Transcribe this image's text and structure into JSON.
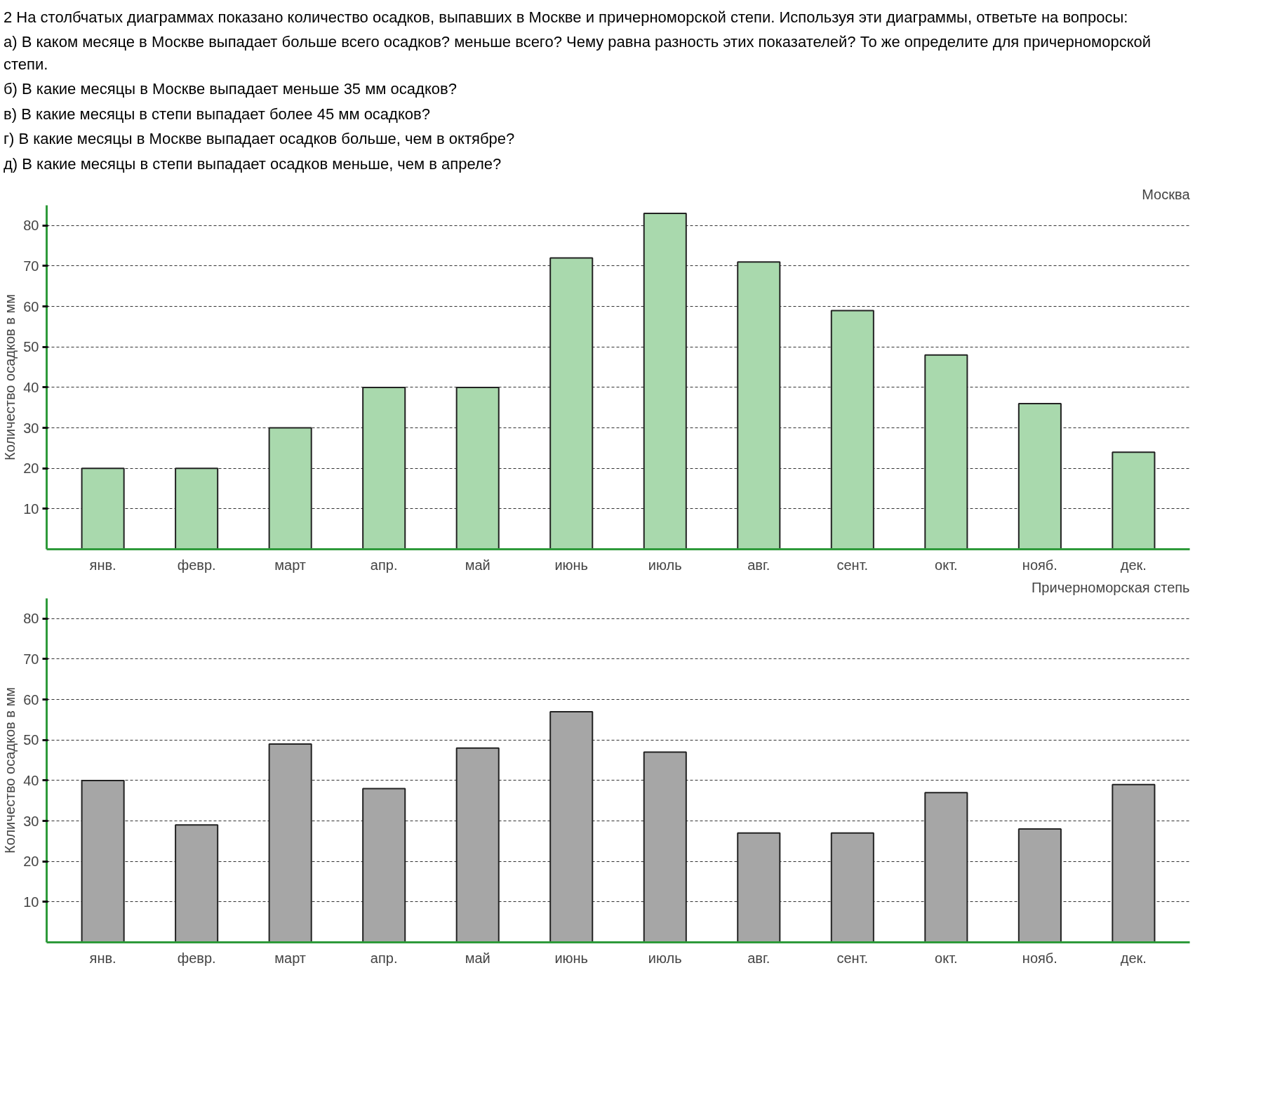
{
  "chart_data": [
    {
      "type": "bar",
      "title": "Москва",
      "ylabel": "Количество осадков в мм",
      "annotations": [
        "2 На столбчатых диаграммах показано количество осадков, выпавших в Москве и причерноморской степи. Используя эти диаграммы, ответьте на вопросы:",
        "а) В каком месяце в Москве выпадает больше всего осадков? меньше всего? Чему равна разность этих показателей? То же определите для причерноморской степи.",
        "б) В какие месяцы в Москве выпадает меньше 35 мм осадков?",
        "в) В какие месяцы в степи выпадает более 45 мм осадков?",
        "г) В какие месяцы в Москве выпадает осадков больше, чем в октябре?",
        "д) В какие месяцы в степи выпадает осадков меньше, чем в апреле?"
      ],
      "categories": [
        "янв.",
        "февр.",
        "март",
        "апр.",
        "май",
        "июнь",
        "июль",
        "авг.",
        "сент.",
        "окт.",
        "нояб.",
        "дек."
      ],
      "values": [
        20,
        20,
        30,
        40,
        40,
        72,
        83,
        71,
        59,
        48,
        36,
        24
      ],
      "color": "#a9d9ad",
      "ylim": [
        0,
        85
      ],
      "yticks": [
        10,
        20,
        30,
        40,
        50,
        60,
        70,
        80
      ],
      "grid": "y"
    },
    {
      "type": "bar",
      "title": "Причерноморская степь",
      "ylabel": "Количество осадков в мм",
      "categories": [
        "янв.",
        "февр.",
        "март",
        "апр.",
        "май",
        "июнь",
        "июль",
        "авг.",
        "сент.",
        "окт.",
        "нояб.",
        "дек."
      ],
      "values": [
        40,
        29,
        49,
        38,
        48,
        57,
        47,
        27,
        27,
        37,
        28,
        39
      ],
      "color": "#a6a6a6",
      "ylim": [
        0,
        85
      ],
      "yticks": [
        10,
        20,
        30,
        40,
        50,
        60,
        70,
        80
      ],
      "grid": "y"
    }
  ]
}
